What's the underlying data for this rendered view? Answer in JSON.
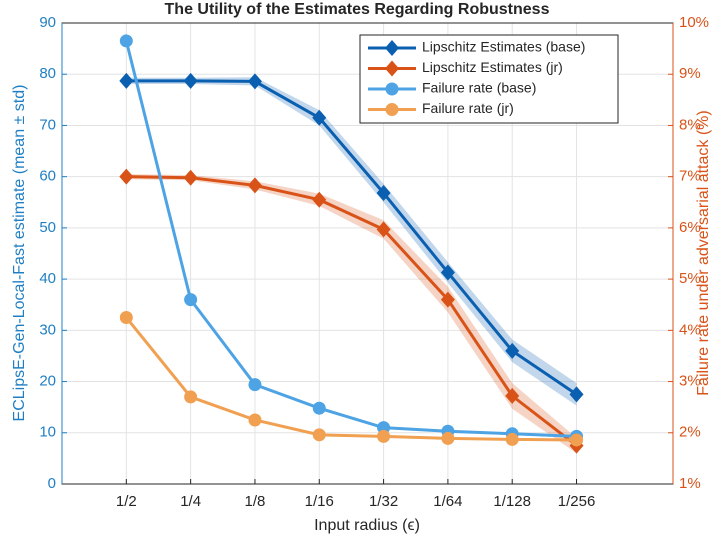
{
  "chart_data": {
    "type": "line",
    "title": "The Utility of the Estimates Regarding Robustness",
    "x_label": "Input radius (ϵ)",
    "y_label": "ECLipsE-Gen-Local-Fast estimate (mean ± std)",
    "y2_label": "Failure rate under adversarial attack (%)",
    "categories": [
      "1/2",
      "1/4",
      "1/8",
      "1/16",
      "1/32",
      "1/64",
      "1/128",
      "1/256"
    ],
    "ylim": [
      0,
      90
    ],
    "yticks": [
      0,
      10,
      20,
      30,
      40,
      50,
      60,
      70,
      80,
      90
    ],
    "y2lim": [
      1,
      10
    ],
    "y2ticks": [
      {
        "value": 1,
        "label": "1%"
      },
      {
        "value": 2,
        "label": "2%"
      },
      {
        "value": 3,
        "label": "3%"
      },
      {
        "value": 4,
        "label": "4%"
      },
      {
        "value": 5,
        "label": "5%"
      },
      {
        "value": 6,
        "label": "6%"
      },
      {
        "value": 7,
        "label": "7%"
      },
      {
        "value": 8,
        "label": "8%"
      },
      {
        "value": 9,
        "label": "9%"
      },
      {
        "value": 10,
        "label": "10%"
      }
    ],
    "y_color": "#1f7fc4",
    "y2_color": "#d95319",
    "grid": true,
    "legend": "top-right",
    "series": [
      {
        "name": "Lipschitz Estimates (base)",
        "color": "#0a5fb0",
        "marker": "diamond",
        "values": [
          78.7,
          78.7,
          78.6,
          71.5,
          56.8,
          41.3,
          26.0,
          17.5
        ],
        "std": [
          0.6,
          0.6,
          0.8,
          1.5,
          1.8,
          2.0,
          2.2,
          2.2
        ]
      },
      {
        "name": "Lipschitz Estimates (jr)",
        "color": "#d95319",
        "marker": "diamond",
        "values": [
          60.0,
          59.8,
          58.3,
          55.5,
          49.7,
          36.0,
          17.2,
          7.5
        ],
        "std": [
          0.5,
          0.5,
          0.8,
          1.2,
          1.8,
          2.5,
          2.5,
          1.5
        ]
      },
      {
        "name": "Failure rate (base)",
        "color": "#4da3e3",
        "marker": "circle",
        "axis": "y2",
        "values": [
          9.65,
          4.6,
          2.94,
          2.48,
          2.1,
          2.03,
          1.98,
          1.93
        ]
      },
      {
        "name": "Failure rate (jr)",
        "color": "#f0a050",
        "marker": "circle",
        "axis": "y2",
        "values": [
          4.25,
          2.7,
          2.25,
          1.96,
          1.93,
          1.89,
          1.87,
          1.86
        ]
      }
    ]
  }
}
